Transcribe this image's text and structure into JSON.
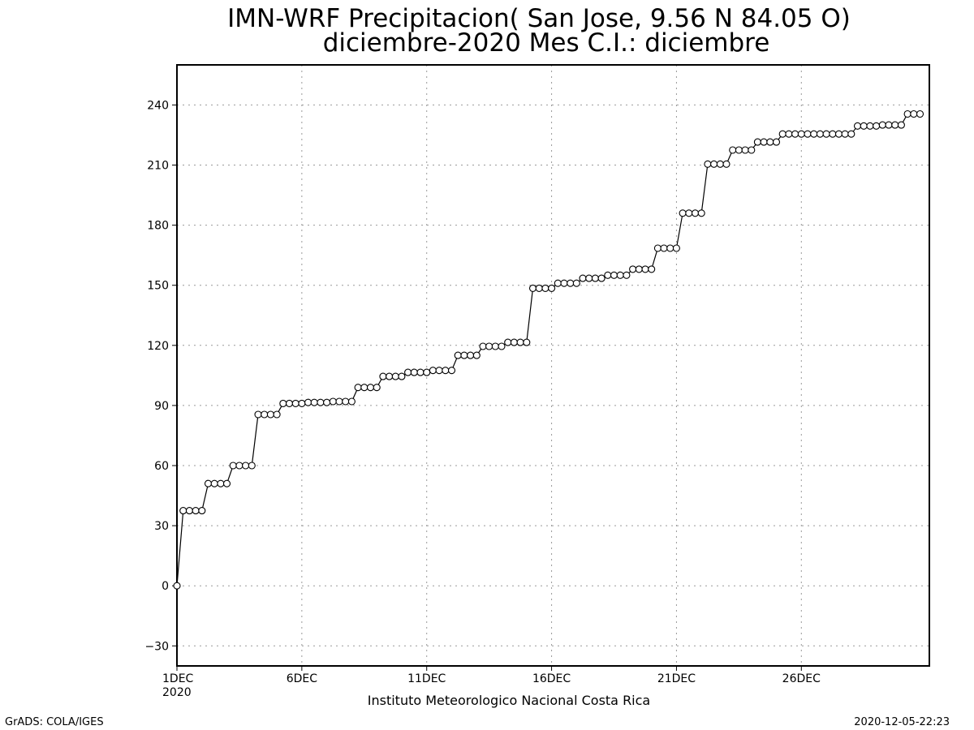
{
  "chart_data": {
    "type": "line",
    "title": "IMN-WRF  Precipitacion( San Jose, 9.56  N 84.05  O)",
    "subtitle": "diciembre-2020 Mes C.I.: diciembre",
    "xlabel": "Instituto Meteorologico Nacional Costa Rica",
    "ylabel": "",
    "ylim": [
      -40,
      260
    ],
    "yticks": [
      -30,
      0,
      30,
      60,
      90,
      120,
      150,
      180,
      210,
      240
    ],
    "xlim": [
      1,
      31.125
    ],
    "xticks": [
      {
        "day": 1,
        "label": "1DEC",
        "sublabel": "2020"
      },
      {
        "day": 6,
        "label": "6DEC"
      },
      {
        "day": 11,
        "label": "11DEC"
      },
      {
        "day": 16,
        "label": "16DEC"
      },
      {
        "day": 21,
        "label": "21DEC"
      },
      {
        "day": 26,
        "label": "26DEC"
      }
    ],
    "grid": true,
    "x_step_days": 0.25,
    "values": [
      0,
      37.5,
      37.5,
      37.5,
      37.5,
      51,
      51,
      51,
      51,
      60,
      60,
      60,
      60,
      85.5,
      85.5,
      85.5,
      85.5,
      91,
      91,
      91,
      91,
      91.5,
      91.5,
      91.5,
      91.5,
      92,
      92,
      92,
      92,
      99,
      99,
      99,
      99,
      104.5,
      104.5,
      104.5,
      104.5,
      106.5,
      106.5,
      106.5,
      106.5,
      107.5,
      107.5,
      107.5,
      107.5,
      115,
      115,
      115,
      115,
      119.5,
      119.5,
      119.5,
      119.5,
      121.5,
      121.5,
      121.5,
      121.5,
      148.5,
      148.5,
      148.5,
      148.5,
      151,
      151,
      151,
      151,
      153.5,
      153.5,
      153.5,
      153.5,
      155,
      155,
      155,
      155,
      158,
      158,
      158,
      158,
      168.5,
      168.5,
      168.5,
      168.5,
      186,
      186,
      186,
      186,
      210.5,
      210.5,
      210.5,
      210.5,
      217.5,
      217.5,
      217.5,
      217.5,
      221.5,
      221.5,
      221.5,
      221.5,
      225.5,
      225.5,
      225.5,
      225.5,
      225.5,
      225.5,
      225.5,
      225.5,
      225.5,
      225.5,
      225.5,
      225.5,
      229.5,
      229.5,
      229.5,
      229.5,
      230,
      230,
      230,
      230,
      235.5,
      235.5,
      235.5
    ],
    "marker": "open-circle",
    "line_color": "#000000"
  },
  "footer": {
    "left": "GrADS: COLA/IGES",
    "right": "2020-12-05-22:23"
  }
}
